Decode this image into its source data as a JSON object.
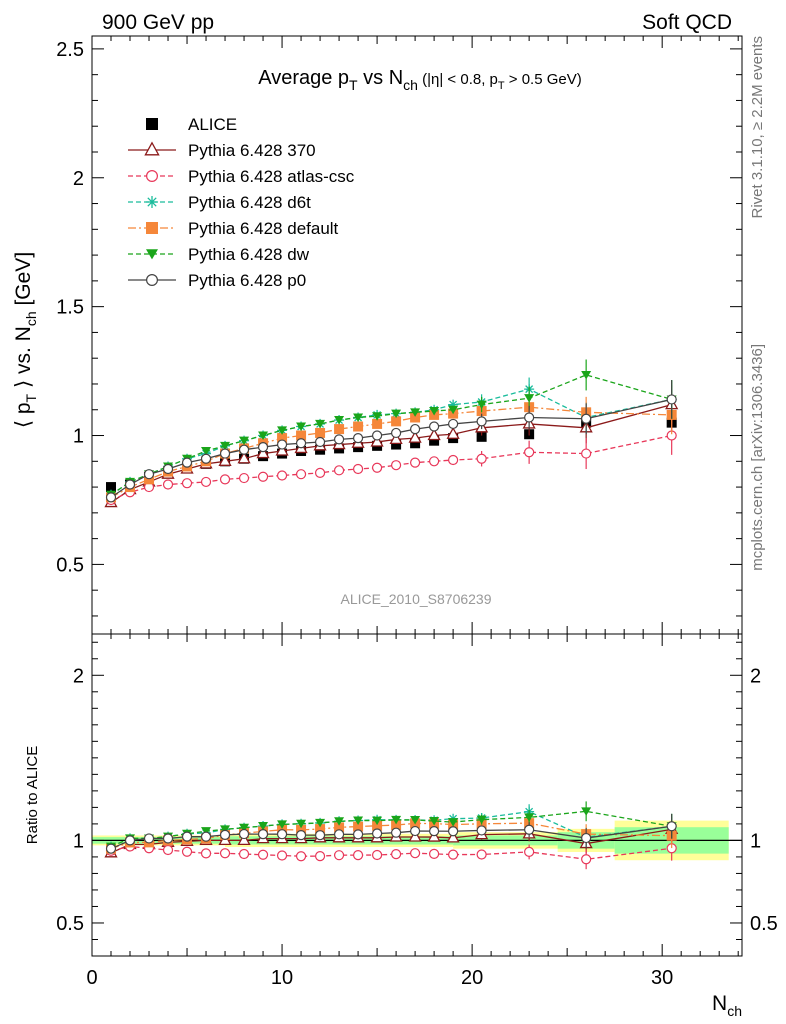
{
  "header": {
    "left": "900 GeV pp",
    "right": "Soft QCD"
  },
  "side_labels": {
    "rivet": "Rivet 3.1.10, ≥ 2.2M events",
    "mcplots": "mcplots.cern.ch [arXiv:1306.3436]"
  },
  "watermark": "ALICE_2010_S8706239",
  "chart_data": [
    {
      "type": "scatter",
      "title": {
        "main": "Average p",
        "sub1": "T",
        "mid": " vs N",
        "sub2": "ch",
        "tail": " (|η| < 0.8, p",
        "sub3": "T",
        "tail2": " > 0.5 GeV)"
      },
      "ylabel": {
        "pre": "⟨ p",
        "sub": "T",
        "post": " ⟩ vs. N",
        "sub2": "ch",
        "post2": " [GeV]"
      },
      "xlim": [
        0,
        34.2
      ],
      "ylim": [
        0.23,
        2.55
      ],
      "yticks": [
        0.5,
        1,
        1.5,
        2,
        2.5
      ],
      "yticklabels": [
        "0.5",
        "1",
        "1.5",
        "2",
        "2.5"
      ],
      "legend_position": "top-left",
      "x": [
        1,
        2,
        3,
        4,
        5,
        6,
        7,
        8,
        9,
        10,
        11,
        12,
        13,
        14,
        15,
        16,
        17,
        18,
        19,
        20.5,
        23,
        26,
        30.5
      ],
      "series": [
        {
          "name": "ALICE",
          "color": "#000000",
          "marker": "square",
          "line": "none",
          "values": [
            0.8,
            0.81,
            0.84,
            0.86,
            0.875,
            0.89,
            0.9,
            0.91,
            0.92,
            0.93,
            0.94,
            0.945,
            0.95,
            0.955,
            0.96,
            0.965,
            0.97,
            0.98,
            0.99,
            0.995,
            1.005,
            1.05,
            1.05
          ]
        },
        {
          "name": "Pythia 6.428 370",
          "color": "#8b1a1a",
          "marker": "triangle-open",
          "line": "solid",
          "values": [
            0.74,
            0.79,
            0.82,
            0.85,
            0.87,
            0.89,
            0.9,
            0.91,
            0.93,
            0.94,
            0.95,
            0.96,
            0.965,
            0.97,
            0.975,
            0.985,
            0.99,
            1.0,
            1.005,
            1.03,
            1.045,
            1.03,
            1.12
          ]
        },
        {
          "name": "Pythia 6.428 atlas-csc",
          "color": "#e8385a",
          "marker": "circle-open",
          "line": "dashed",
          "values": [
            0.75,
            0.78,
            0.8,
            0.81,
            0.815,
            0.82,
            0.83,
            0.835,
            0.84,
            0.845,
            0.85,
            0.855,
            0.865,
            0.87,
            0.875,
            0.885,
            0.895,
            0.9,
            0.905,
            0.91,
            0.935,
            0.93,
            1.0
          ]
        },
        {
          "name": "Pythia 6.428 d6t",
          "color": "#1abc9c",
          "marker": "star",
          "line": "dashed",
          "values": [
            0.77,
            0.82,
            0.85,
            0.88,
            0.91,
            0.93,
            0.96,
            0.98,
            1.0,
            1.02,
            1.035,
            1.045,
            1.06,
            1.07,
            1.08,
            1.085,
            1.09,
            1.1,
            1.12,
            1.13,
            1.18,
            1.07,
            1.14
          ]
        },
        {
          "name": "Pythia 6.428 default",
          "color": "#f5873a",
          "marker": "square",
          "line": "dashdot",
          "values": [
            0.76,
            0.8,
            0.83,
            0.86,
            0.88,
            0.9,
            0.93,
            0.95,
            0.97,
            0.99,
            1.0,
            1.01,
            1.025,
            1.035,
            1.045,
            1.055,
            1.07,
            1.08,
            1.085,
            1.095,
            1.11,
            1.09,
            1.08
          ]
        },
        {
          "name": "Pythia 6.428 dw",
          "color": "#1aa51a",
          "marker": "triangle-down",
          "line": "dashed",
          "values": [
            0.77,
            0.82,
            0.85,
            0.88,
            0.91,
            0.94,
            0.96,
            0.98,
            1.0,
            1.02,
            1.035,
            1.045,
            1.06,
            1.07,
            1.075,
            1.085,
            1.09,
            1.095,
            1.1,
            1.12,
            1.145,
            1.235,
            1.14
          ]
        },
        {
          "name": "Pythia 6.428 p0",
          "color": "#444444",
          "marker": "circle-open",
          "line": "solid",
          "values": [
            0.76,
            0.81,
            0.85,
            0.87,
            0.895,
            0.91,
            0.93,
            0.945,
            0.955,
            0.965,
            0.97,
            0.975,
            0.985,
            0.99,
            1.0,
            1.01,
            1.025,
            1.035,
            1.045,
            1.055,
            1.07,
            1.065,
            1.14
          ]
        }
      ]
    },
    {
      "type": "scatter",
      "ylabel": "Ratio to ALICE",
      "xlabel": {
        "pre": "N",
        "sub": "ch"
      },
      "xlim": [
        0,
        34.2
      ],
      "ylim": [
        0.3,
        2.25
      ],
      "yticks": [
        0.5,
        1,
        2
      ],
      "yticklabels": [
        "0.5",
        "1",
        "2"
      ],
      "xticks": [
        0,
        10,
        20,
        30
      ],
      "xticklabels": [
        "0",
        "10",
        "20",
        "30"
      ],
      "bands": [
        {
          "x0": 0,
          "x1": 7,
          "inner": 0.02,
          "outer": 0.03
        },
        {
          "x0": 7,
          "x1": 19,
          "inner": 0.025,
          "outer": 0.04
        },
        {
          "x0": 19,
          "x1": 24.5,
          "inner": 0.03,
          "outer": 0.05
        },
        {
          "x0": 24.5,
          "x1": 27.5,
          "inner": 0.05,
          "outer": 0.07
        },
        {
          "x0": 27.5,
          "x1": 33.5,
          "inner": 0.08,
          "outer": 0.12
        }
      ],
      "band_colors": {
        "inner": "#99ff99",
        "outer": "#ffff99"
      }
    }
  ]
}
